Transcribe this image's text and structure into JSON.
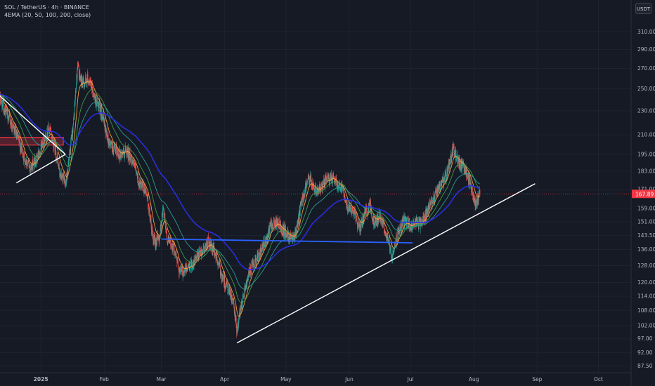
{
  "legend": {
    "symbol_line": "SOL / TetherUS · 4h · BINANCE",
    "indicator_line": "4EMA (20, 50, 100, 200, close)"
  },
  "quote_currency": "USDT",
  "last_price": "167.89",
  "colors": {
    "background": "#161a25",
    "grid": "#1f2330",
    "axis_text": "#b2b5be",
    "candle_up": "#26a69a",
    "candle_down": "#ef5350",
    "ema20": "#ff9f3a",
    "ema50": "#3fa049",
    "ema100": "#26a69a",
    "ema200": "#2a2ee8",
    "trendline": "#ffffff",
    "horizontal_level": "#2962ff",
    "price_line": "#f23645",
    "resistance_zone": "#f23645"
  },
  "chart_data": {
    "type": "candlestick",
    "title": "SOL / TetherUS · 4h · BINANCE",
    "x_ticks": [
      "2025",
      "Feb",
      "Mar",
      "Apr",
      "May",
      "Jun",
      "Jul",
      "Aug",
      "Sep",
      "Oct"
    ],
    "y_ticks": [
      "310.00",
      "290.00",
      "270.00",
      "250.00",
      "230.00",
      "210.00",
      "195.00",
      "183.00",
      "171.00",
      "159.00",
      "151.00",
      "143.50",
      "136.00",
      "128.00",
      "120.00",
      "114.00",
      "108.00",
      "102.00",
      "97.00",
      "92.00",
      "87.50"
    ],
    "y_scale": "log",
    "x_range": [
      "2024-12-12",
      "2025-10-17"
    ],
    "y_range": [
      86,
      330
    ],
    "current_price": 167.89,
    "legend_position": "top-left",
    "series": [
      {
        "name": "SOL / TetherUS",
        "type": "price",
        "points": [
          [
            "2024-12-12",
            240
          ],
          [
            "2024-12-16",
            225
          ],
          [
            "2024-12-20",
            210
          ],
          [
            "2024-12-24",
            192
          ],
          [
            "2024-12-27",
            185
          ],
          [
            "2024-12-30",
            192
          ],
          [
            "2025-01-02",
            205
          ],
          [
            "2025-01-05",
            215
          ],
          [
            "2025-01-08",
            200
          ],
          [
            "2025-01-10",
            182
          ],
          [
            "2025-01-13",
            175
          ],
          [
            "2025-01-15",
            192
          ],
          [
            "2025-01-17",
            220
          ],
          [
            "2025-01-19",
            275
          ],
          [
            "2025-01-20",
            260
          ],
          [
            "2025-01-22",
            255
          ],
          [
            "2025-01-24",
            260
          ],
          [
            "2025-01-26",
            250
          ],
          [
            "2025-01-28",
            238
          ],
          [
            "2025-01-31",
            228
          ],
          [
            "2025-02-03",
            205
          ],
          [
            "2025-02-06",
            198
          ],
          [
            "2025-02-09",
            195
          ],
          [
            "2025-02-12",
            198
          ],
          [
            "2025-02-15",
            190
          ],
          [
            "2025-02-18",
            175
          ],
          [
            "2025-02-22",
            168
          ],
          [
            "2025-02-25",
            140
          ],
          [
            "2025-02-28",
            142
          ],
          [
            "2025-03-02",
            160
          ],
          [
            "2025-03-04",
            140
          ],
          [
            "2025-03-07",
            138
          ],
          [
            "2025-03-10",
            125
          ],
          [
            "2025-03-13",
            126
          ],
          [
            "2025-03-17",
            130
          ],
          [
            "2025-03-20",
            134
          ],
          [
            "2025-03-24",
            140
          ],
          [
            "2025-03-27",
            135
          ],
          [
            "2025-03-30",
            125
          ],
          [
            "2025-04-02",
            118
          ],
          [
            "2025-04-05",
            112
          ],
          [
            "2025-04-07",
            100
          ],
          [
            "2025-04-09",
            110
          ],
          [
            "2025-04-12",
            122
          ],
          [
            "2025-04-15",
            128
          ],
          [
            "2025-04-18",
            133
          ],
          [
            "2025-04-21",
            140
          ],
          [
            "2025-04-24",
            150
          ],
          [
            "2025-04-27",
            150
          ],
          [
            "2025-04-30",
            146
          ],
          [
            "2025-05-03",
            143
          ],
          [
            "2025-05-06",
            145
          ],
          [
            "2025-05-09",
            165
          ],
          [
            "2025-05-12",
            178
          ],
          [
            "2025-05-15",
            172
          ],
          [
            "2025-05-18",
            170
          ],
          [
            "2025-05-21",
            178
          ],
          [
            "2025-05-23",
            178
          ],
          [
            "2025-05-26",
            175
          ],
          [
            "2025-05-29",
            172
          ],
          [
            "2025-05-31",
            160
          ],
          [
            "2025-06-03",
            158
          ],
          [
            "2025-06-06",
            147
          ],
          [
            "2025-06-09",
            156
          ],
          [
            "2025-06-11",
            162
          ],
          [
            "2025-06-13",
            150
          ],
          [
            "2025-06-16",
            155
          ],
          [
            "2025-06-18",
            148
          ],
          [
            "2025-06-20",
            140
          ],
          [
            "2025-06-22",
            133
          ],
          [
            "2025-06-25",
            145
          ],
          [
            "2025-06-28",
            152
          ],
          [
            "2025-07-01",
            148
          ],
          [
            "2025-07-03",
            151
          ],
          [
            "2025-07-06",
            150
          ],
          [
            "2025-07-09",
            156
          ],
          [
            "2025-07-12",
            164
          ],
          [
            "2025-07-15",
            172
          ],
          [
            "2025-07-18",
            178
          ],
          [
            "2025-07-20",
            187
          ],
          [
            "2025-07-22",
            200
          ],
          [
            "2025-07-24",
            190
          ],
          [
            "2025-07-26",
            187
          ],
          [
            "2025-07-28",
            183
          ],
          [
            "2025-07-30",
            176
          ],
          [
            "2025-08-01",
            165
          ],
          [
            "2025-08-02",
            160
          ],
          [
            "2025-08-03",
            164
          ],
          [
            "2025-08-04",
            167.89
          ]
        ]
      },
      {
        "name": "EMA 20",
        "type": "ema",
        "period": 20,
        "color": "#ff9f3a"
      },
      {
        "name": "EMA 50",
        "type": "ema",
        "period": 50,
        "color": "#3fa049"
      },
      {
        "name": "EMA 100",
        "type": "ema",
        "period": 100,
        "color": "#26a69a"
      },
      {
        "name": "EMA 200",
        "type": "ema",
        "period": 200,
        "color": "#2a2ee8"
      }
    ],
    "drawings": [
      {
        "type": "trendline",
        "from": [
          "2024-12-08",
          250
        ],
        "to": [
          "2025-01-13",
          195
        ],
        "color": "#ffffff"
      },
      {
        "type": "trendline",
        "from": [
          "2024-12-20",
          175
        ],
        "to": [
          "2025-01-13",
          195
        ],
        "color": "#ffffff"
      },
      {
        "type": "trendline",
        "from": [
          "2025-04-07",
          95.5
        ],
        "to": [
          "2025-08-31",
          174.5
        ],
        "color": "#ffffff"
      },
      {
        "type": "horizontal_segment",
        "from": [
          "2025-03-01",
          141.5
        ],
        "to": [
          "2025-07-02",
          139.5
        ],
        "color": "#2962ff"
      },
      {
        "type": "zone",
        "from_date": "2024-12-08",
        "to_date": "2025-01-12",
        "low": 202,
        "high": 208,
        "color": "#f23645"
      },
      {
        "type": "price_line",
        "value": 167.89,
        "color": "#f23645"
      }
    ]
  }
}
